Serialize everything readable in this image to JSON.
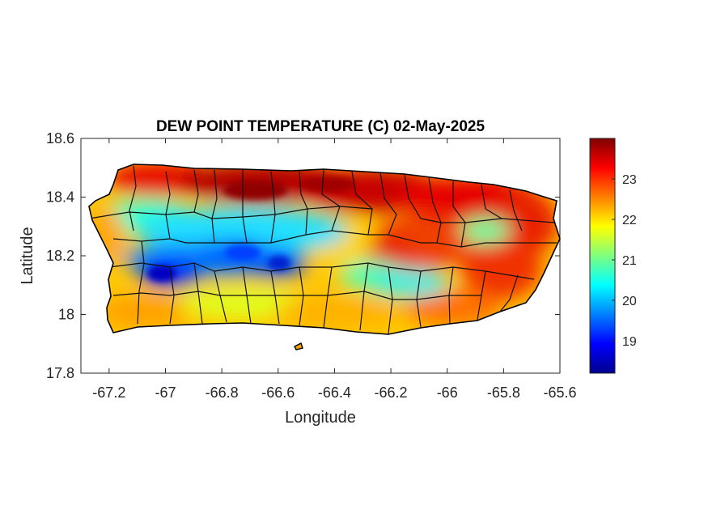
{
  "title": "DEW POINT TEMPERATURE (C) 02-May-2025",
  "xaxis": {
    "label": "Longitude",
    "range": [
      -67.3,
      -65.6
    ],
    "ticks": [
      -67.2,
      -67,
      -66.8,
      -66.6,
      -66.4,
      -66.2,
      -66,
      -65.8,
      -65.6
    ],
    "tick_labels": [
      "-67.2",
      "-67",
      "-66.8",
      "-66.6",
      "-66.4",
      "-66.2",
      "-66",
      "-65.8",
      "-65.6"
    ]
  },
  "yaxis": {
    "label": "Latitude",
    "range": [
      17.8,
      18.6
    ],
    "ticks": [
      17.8,
      18,
      18.2,
      18.4,
      18.6
    ],
    "tick_labels": [
      "17.8",
      "18",
      "18.2",
      "18.4",
      "18.6"
    ]
  },
  "colorbar": {
    "colormap": "jet",
    "range": [
      18.2,
      24.0
    ],
    "ticks": [
      19,
      20,
      21,
      22,
      23
    ],
    "tick_labels": [
      "19",
      "20",
      "21",
      "22",
      "23"
    ]
  },
  "chart_data": {
    "type": "heatmap",
    "title": "DEW POINT TEMPERATURE (C) 02-May-2025",
    "xlabel": "Longitude",
    "ylabel": "Latitude",
    "xlim": [
      -67.3,
      -65.6
    ],
    "ylim": [
      17.8,
      18.6
    ],
    "color_range": [
      18.2,
      24.0
    ],
    "grid": false,
    "region": "Puerto Rico",
    "field_samples": [
      {
        "lon": -67.05,
        "lat": 18.15,
        "value": 18.8
      },
      {
        "lon": -66.85,
        "lat": 18.2,
        "value": 19.4
      },
      {
        "lon": -66.6,
        "lat": 18.17,
        "value": 19.0
      },
      {
        "lon": -66.95,
        "lat": 18.3,
        "value": 20.5
      },
      {
        "lon": -66.75,
        "lat": 18.45,
        "value": 23.8
      },
      {
        "lon": -66.4,
        "lat": 18.45,
        "value": 23.7
      },
      {
        "lon": -67.1,
        "lat": 18.48,
        "value": 23.5
      },
      {
        "lon": -66.0,
        "lat": 18.4,
        "value": 23.3
      },
      {
        "lon": -65.7,
        "lat": 18.3,
        "value": 23.2
      },
      {
        "lon": -65.9,
        "lat": 18.3,
        "value": 21.0
      },
      {
        "lon": -66.25,
        "lat": 18.17,
        "value": 21.3
      },
      {
        "lon": -66.15,
        "lat": 18.12,
        "value": 20.8
      },
      {
        "lon": -66.5,
        "lat": 18.0,
        "value": 22.4
      },
      {
        "lon": -67.15,
        "lat": 18.0,
        "value": 22.2
      },
      {
        "lon": -65.95,
        "lat": 18.05,
        "value": 22.6
      },
      {
        "lon": -66.3,
        "lat": 18.28,
        "value": 21.5
      }
    ]
  }
}
